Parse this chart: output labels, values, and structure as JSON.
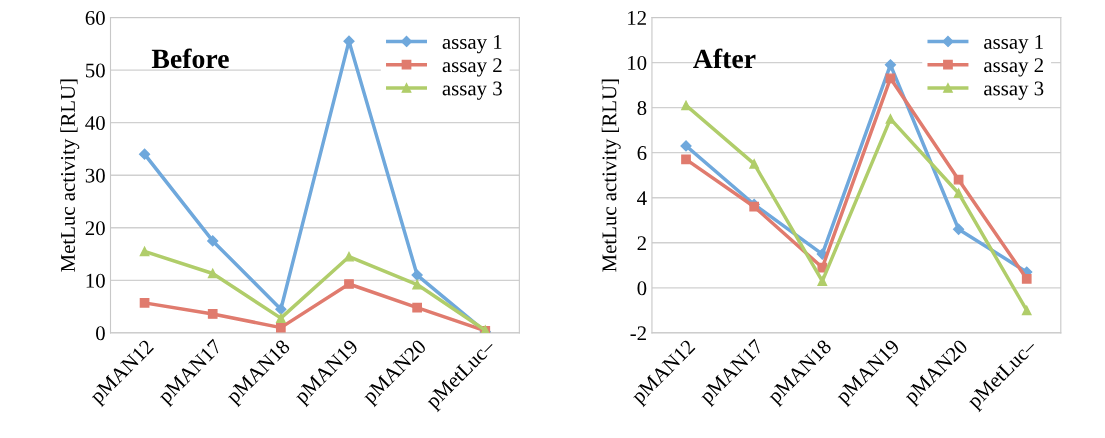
{
  "chart_data": [
    {
      "type": "line",
      "title": "Before",
      "ylabel": "MetLuc activity [RLU]",
      "categories": [
        "pMAN12",
        "pMAN17",
        "pMAN18",
        "pMAN19",
        "pMAN20",
        "pMetLuc–"
      ],
      "series": [
        {
          "name": "assay 1",
          "color": "#6fa8dc",
          "marker": "diamond",
          "values": [
            34,
            17.5,
            4.5,
            55.5,
            11,
            0.2
          ]
        },
        {
          "name": "assay 2",
          "color": "#e07b6e",
          "marker": "square",
          "values": [
            5.7,
            3.6,
            1,
            9.3,
            4.8,
            0.4
          ]
        },
        {
          "name": "assay 3",
          "color": "#b0cd6a",
          "marker": "triangle",
          "values": [
            15.5,
            11.3,
            2.8,
            14.5,
            9.2,
            0.5
          ]
        }
      ],
      "ylim": [
        0,
        60
      ],
      "yticks": [
        0,
        10,
        20,
        30,
        40,
        50,
        60
      ],
      "grid": "y",
      "legend": "top right"
    },
    {
      "type": "line",
      "title": "After",
      "ylabel": "MetLuc activity [RLU]",
      "categories": [
        "pMAN12",
        "pMAN17",
        "pMAN18",
        "pMAN19",
        "pMAN20",
        "pMetLuc–"
      ],
      "series": [
        {
          "name": "assay 1",
          "color": "#6fa8dc",
          "marker": "diamond",
          "values": [
            6.3,
            3.7,
            1.5,
            9.9,
            2.6,
            0.7
          ]
        },
        {
          "name": "assay 2",
          "color": "#e07b6e",
          "marker": "square",
          "values": [
            5.7,
            3.6,
            0.9,
            9.3,
            4.8,
            0.4
          ]
        },
        {
          "name": "assay 3",
          "color": "#b0cd6a",
          "marker": "triangle",
          "values": [
            8.1,
            5.5,
            0.3,
            7.5,
            4.2,
            -1.0
          ]
        }
      ],
      "ylim": [
        -2,
        12
      ],
      "yticks": [
        {
          "value": -2,
          "label": "-2"
        },
        0,
        2,
        4,
        6,
        8,
        10,
        12
      ],
      "grid": "y",
      "legend": "top right"
    }
  ]
}
